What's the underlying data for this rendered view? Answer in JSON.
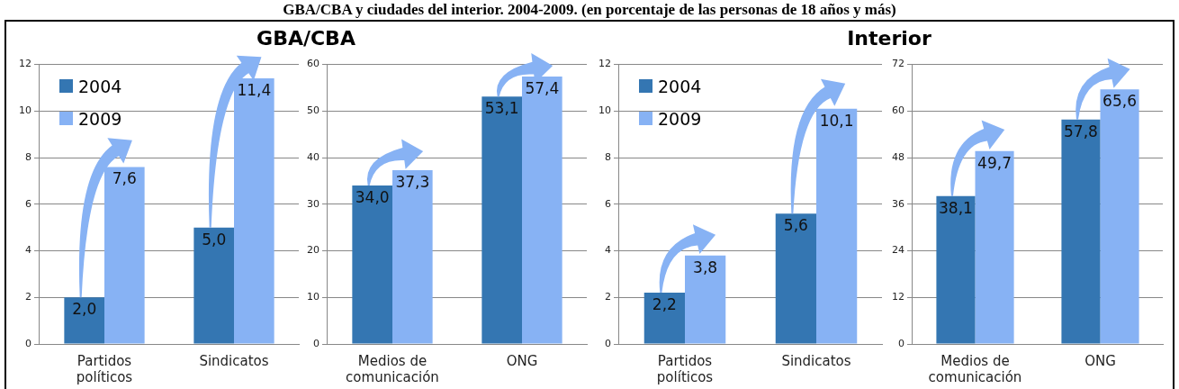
{
  "chart_data": [
    {
      "type": "bar",
      "title": "GBA/CBA",
      "annotations": [
        "GBA/CBA y ciudades del interior. 2004-2009. (en porcentaje de las personas de 18 años y más)"
      ],
      "categories": [
        "Partidos políticos",
        "Sindicatos"
      ],
      "ylim": [
        0,
        12
      ],
      "yticks": [
        0,
        2,
        4,
        6,
        8,
        10,
        12
      ],
      "grid": "y",
      "legend": "top left",
      "series": [
        {
          "name": "2004",
          "color": "#3476b2",
          "values": [
            2.0,
            5.0
          ],
          "value_labels": [
            "2,0",
            "5,0"
          ]
        },
        {
          "name": "2009",
          "color": "#87b2f4",
          "values": [
            7.6,
            11.4
          ],
          "value_labels": [
            "7,6",
            "11,4"
          ]
        }
      ]
    },
    {
      "type": "bar",
      "categories": [
        "Medios de comunicación",
        "ONG"
      ],
      "ylim": [
        0,
        60
      ],
      "yticks": [
        0,
        10,
        20,
        30,
        40,
        50,
        60
      ],
      "grid": "y",
      "series": [
        {
          "color": "#3476b2",
          "values": [
            34.0,
            53.1
          ],
          "value_labels": [
            "34,0",
            "53,1"
          ]
        },
        {
          "color": "#87b2f4",
          "values": [
            37.3,
            57.4
          ],
          "value_labels": [
            "37,3",
            "57,4"
          ]
        }
      ]
    },
    {
      "type": "bar",
      "title": "Interior",
      "categories": [
        "Partidos políticos",
        "Sindicatos"
      ],
      "ylim": [
        0,
        12
      ],
      "yticks": [
        0,
        2,
        4,
        6,
        8,
        10,
        12
      ],
      "grid": "y",
      "legend": "top left",
      "series": [
        {
          "name": "2004",
          "color": "#3476b2",
          "values": [
            2.2,
            5.6
          ],
          "value_labels": [
            "2,2",
            "5,6"
          ]
        },
        {
          "name": "2009",
          "color": "#87b2f4",
          "values": [
            3.8,
            10.1
          ],
          "value_labels": [
            "3,8",
            "10,1"
          ]
        }
      ]
    },
    {
      "type": "bar",
      "categories": [
        "Medios de comunicación",
        "ONG"
      ],
      "ylim": [
        0,
        72
      ],
      "yticks": [
        0,
        12,
        24,
        36,
        48,
        60,
        72
      ],
      "grid": "y",
      "series": [
        {
          "color": "#3476b2",
          "values": [
            38.1,
            57.8
          ],
          "value_labels": [
            "38,1",
            "57,8"
          ]
        },
        {
          "color": "#87b2f4",
          "values": [
            49.7,
            65.6
          ],
          "value_labels": [
            "49,7",
            "65,6"
          ]
        }
      ]
    }
  ]
}
